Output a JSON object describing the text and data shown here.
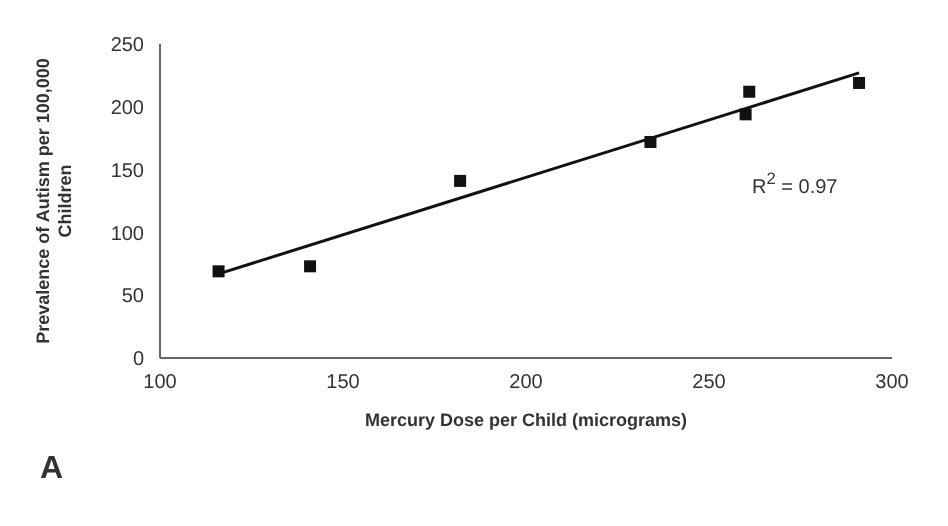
{
  "chart_data": {
    "type": "scatter",
    "xlabel": "Mercury Dose per Child (micrograms)",
    "ylabel": "Prevalence of Autism per 100,000 Children",
    "series": [
      {
        "color": "#111111",
        "marker": "square",
        "x": [
          116,
          141,
          182,
          234,
          260,
          261,
          291
        ],
        "values": [
          69,
          73,
          141,
          172,
          194,
          212,
          219
        ]
      },
      {
        "type": "line",
        "color": "#111111",
        "marker": "none",
        "line_style": "solid",
        "x": [
          116,
          291
        ],
        "values": [
          67,
          227
        ]
      }
    ],
    "xlim": [
      100,
      300
    ],
    "xticks": [
      100,
      150,
      200,
      250,
      300
    ],
    "ylim": [
      0,
      250
    ],
    "yticks": [
      0,
      50,
      100,
      150,
      200,
      250
    ],
    "annotations": [
      "R$^{2}$ = 0.97",
      "A"
    ]
  }
}
